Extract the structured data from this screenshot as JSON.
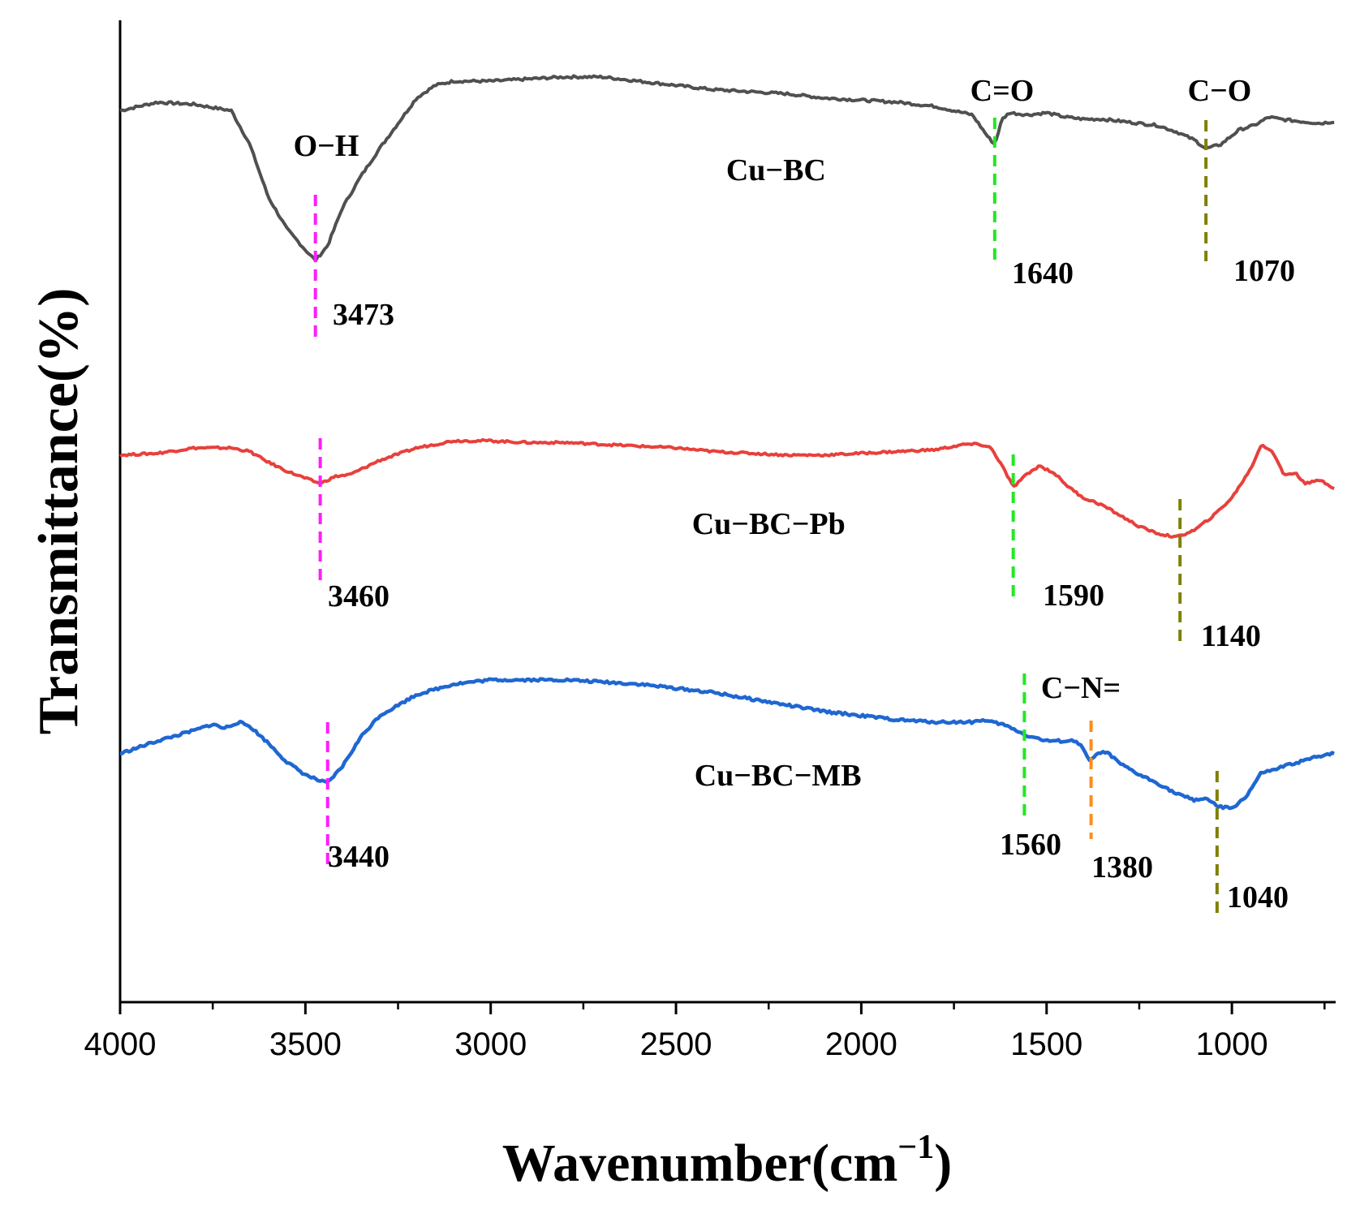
{
  "chart_data": {
    "type": "line",
    "title": "",
    "xlabel": "Wavenumber(cm",
    "xlabel_sup": "−1",
    "xlabel_close": ")",
    "ylabel": "Transmittance(%)",
    "xlim": [
      4000,
      720
    ],
    "x_ticks": [
      4000,
      3500,
      3000,
      2500,
      2000,
      1500,
      1000
    ],
    "x_tick_labels": [
      "4000",
      "3500",
      "3000",
      "2500",
      "2000",
      "1500",
      "1000"
    ],
    "y_ticks_shown": false,
    "grid": false,
    "series": [
      {
        "name": "Cu−BC",
        "color": "#505050",
        "points": [
          [
            4000,
            0.86
          ],
          [
            3900,
            0.9
          ],
          [
            3800,
            0.89
          ],
          [
            3700,
            0.86
          ],
          [
            3650,
            0.7
          ],
          [
            3600,
            0.45
          ],
          [
            3550,
            0.3
          ],
          [
            3500,
            0.2
          ],
          [
            3473,
            0.15
          ],
          [
            3440,
            0.22
          ],
          [
            3400,
            0.4
          ],
          [
            3350,
            0.55
          ],
          [
            3300,
            0.68
          ],
          [
            3200,
            0.92
          ],
          [
            3150,
            0.98
          ],
          [
            3100,
            1.0
          ],
          [
            3000,
            1.0
          ],
          [
            2900,
            1.01
          ],
          [
            2800,
            1.02
          ],
          [
            2700,
            1.02
          ],
          [
            2600,
            1.0
          ],
          [
            2500,
            0.98
          ],
          [
            2400,
            0.96
          ],
          [
            2300,
            0.95
          ],
          [
            2200,
            0.94
          ],
          [
            2100,
            0.92
          ],
          [
            2000,
            0.91
          ],
          [
            1900,
            0.9
          ],
          [
            1800,
            0.88
          ],
          [
            1700,
            0.84
          ],
          [
            1660,
            0.74
          ],
          [
            1640,
            0.7
          ],
          [
            1620,
            0.82
          ],
          [
            1600,
            0.85
          ],
          [
            1550,
            0.84
          ],
          [
            1500,
            0.85
          ],
          [
            1450,
            0.83
          ],
          [
            1400,
            0.82
          ],
          [
            1350,
            0.82
          ],
          [
            1300,
            0.81
          ],
          [
            1200,
            0.79
          ],
          [
            1150,
            0.76
          ],
          [
            1100,
            0.72
          ],
          [
            1070,
            0.68
          ],
          [
            1030,
            0.7
          ],
          [
            980,
            0.77
          ],
          [
            940,
            0.79
          ],
          [
            900,
            0.83
          ],
          [
            870,
            0.82
          ],
          [
            820,
            0.81
          ],
          [
            760,
            0.8
          ],
          [
            720,
            0.81
          ]
        ]
      },
      {
        "name": "Cu−BC−Pb",
        "color": "#e8403c",
        "points": [
          [
            4000,
            0.86
          ],
          [
            3900,
            0.87
          ],
          [
            3800,
            0.9
          ],
          [
            3700,
            0.9
          ],
          [
            3650,
            0.88
          ],
          [
            3600,
            0.82
          ],
          [
            3550,
            0.77
          ],
          [
            3500,
            0.73
          ],
          [
            3460,
            0.7
          ],
          [
            3420,
            0.74
          ],
          [
            3380,
            0.75
          ],
          [
            3300,
            0.83
          ],
          [
            3200,
            0.9
          ],
          [
            3100,
            0.94
          ],
          [
            3000,
            0.94
          ],
          [
            2900,
            0.93
          ],
          [
            2800,
            0.93
          ],
          [
            2700,
            0.92
          ],
          [
            2600,
            0.91
          ],
          [
            2500,
            0.9
          ],
          [
            2400,
            0.88
          ],
          [
            2300,
            0.87
          ],
          [
            2200,
            0.86
          ],
          [
            2100,
            0.86
          ],
          [
            2000,
            0.87
          ],
          [
            1900,
            0.88
          ],
          [
            1800,
            0.89
          ],
          [
            1720,
            0.92
          ],
          [
            1680,
            0.92
          ],
          [
            1650,
            0.9
          ],
          [
            1620,
            0.8
          ],
          [
            1590,
            0.68
          ],
          [
            1560,
            0.74
          ],
          [
            1520,
            0.8
          ],
          [
            1480,
            0.76
          ],
          [
            1440,
            0.68
          ],
          [
            1400,
            0.62
          ],
          [
            1350,
            0.58
          ],
          [
            1300,
            0.52
          ],
          [
            1250,
            0.46
          ],
          [
            1200,
            0.42
          ],
          [
            1150,
            0.4
          ],
          [
            1100,
            0.44
          ],
          [
            1050,
            0.52
          ],
          [
            1000,
            0.62
          ],
          [
            950,
            0.78
          ],
          [
            920,
            0.92
          ],
          [
            890,
            0.88
          ],
          [
            860,
            0.75
          ],
          [
            830,
            0.76
          ],
          [
            800,
            0.7
          ],
          [
            760,
            0.72
          ],
          [
            720,
            0.67
          ]
        ]
      },
      {
        "name": "Cu−BC−MB",
        "color": "#1f67d2",
        "points": [
          [
            4000,
            0.62
          ],
          [
            3900,
            0.68
          ],
          [
            3800,
            0.73
          ],
          [
            3750,
            0.76
          ],
          [
            3720,
            0.74
          ],
          [
            3680,
            0.77
          ],
          [
            3650,
            0.75
          ],
          [
            3600,
            0.67
          ],
          [
            3550,
            0.58
          ],
          [
            3500,
            0.52
          ],
          [
            3460,
            0.49
          ],
          [
            3440,
            0.48
          ],
          [
            3400,
            0.56
          ],
          [
            3350,
            0.7
          ],
          [
            3300,
            0.8
          ],
          [
            3200,
            0.9
          ],
          [
            3100,
            0.95
          ],
          [
            3000,
            0.97
          ],
          [
            2900,
            0.97
          ],
          [
            2800,
            0.97
          ],
          [
            2700,
            0.96
          ],
          [
            2600,
            0.95
          ],
          [
            2500,
            0.93
          ],
          [
            2400,
            0.91
          ],
          [
            2300,
            0.88
          ],
          [
            2200,
            0.85
          ],
          [
            2100,
            0.82
          ],
          [
            2000,
            0.8
          ],
          [
            1900,
            0.78
          ],
          [
            1800,
            0.77
          ],
          [
            1700,
            0.77
          ],
          [
            1680,
            0.78
          ],
          [
            1620,
            0.76
          ],
          [
            1580,
            0.73
          ],
          [
            1560,
            0.71
          ],
          [
            1500,
            0.68
          ],
          [
            1420,
            0.68
          ],
          [
            1400,
            0.64
          ],
          [
            1390,
            0.6
          ],
          [
            1380,
            0.59
          ],
          [
            1360,
            0.62
          ],
          [
            1340,
            0.63
          ],
          [
            1300,
            0.57
          ],
          [
            1250,
            0.52
          ],
          [
            1200,
            0.48
          ],
          [
            1150,
            0.43
          ],
          [
            1100,
            0.4
          ],
          [
            1070,
            0.41
          ],
          [
            1040,
            0.37
          ],
          [
            1000,
            0.36
          ],
          [
            960,
            0.42
          ],
          [
            920,
            0.53
          ],
          [
            890,
            0.54
          ],
          [
            860,
            0.56
          ],
          [
            820,
            0.58
          ],
          [
            780,
            0.6
          ],
          [
            740,
            0.62
          ],
          [
            720,
            0.62
          ]
        ]
      }
    ],
    "series_labels": [
      {
        "text": "Cu−BC",
        "wavenumber": 2230,
        "value": 0.77
      },
      {
        "text": "Cu−BC−Pb",
        "wavenumber": 2250,
        "value": 0.72
      },
      {
        "text": "Cu−BC−MB",
        "wavenumber": 2225,
        "value": 0.64
      }
    ],
    "annotations": [
      {
        "series": 0,
        "wavenumber": 3473,
        "label": "3473",
        "group": "O−H",
        "color": "#ff1cff"
      },
      {
        "series": 0,
        "wavenumber": 1640,
        "label": "1640",
        "group": "C=O",
        "color": "#22e822"
      },
      {
        "series": 0,
        "wavenumber": 1070,
        "label": "1070",
        "group": "C−O",
        "color": "#808000"
      },
      {
        "series": 1,
        "wavenumber": 3460,
        "label": "3460",
        "color": "#ff1cff"
      },
      {
        "series": 1,
        "wavenumber": 1590,
        "label": "1590",
        "color": "#22e822"
      },
      {
        "series": 1,
        "wavenumber": 1140,
        "label": "1140",
        "color": "#808000"
      },
      {
        "series": 2,
        "wavenumber": 3440,
        "label": "3440",
        "color": "#ff1cff"
      },
      {
        "series": 2,
        "wavenumber": 1560,
        "label": "1560",
        "color": "#22e822"
      },
      {
        "series": 2,
        "wavenumber": 1380,
        "label": "1380",
        "group": "C−N=",
        "color": "#ff8c1a"
      },
      {
        "series": 2,
        "wavenumber": 1040,
        "label": "1040",
        "color": "#808000"
      }
    ],
    "group_labels": [
      "O−H",
      "C=O",
      "C−O",
      "C−N="
    ]
  }
}
